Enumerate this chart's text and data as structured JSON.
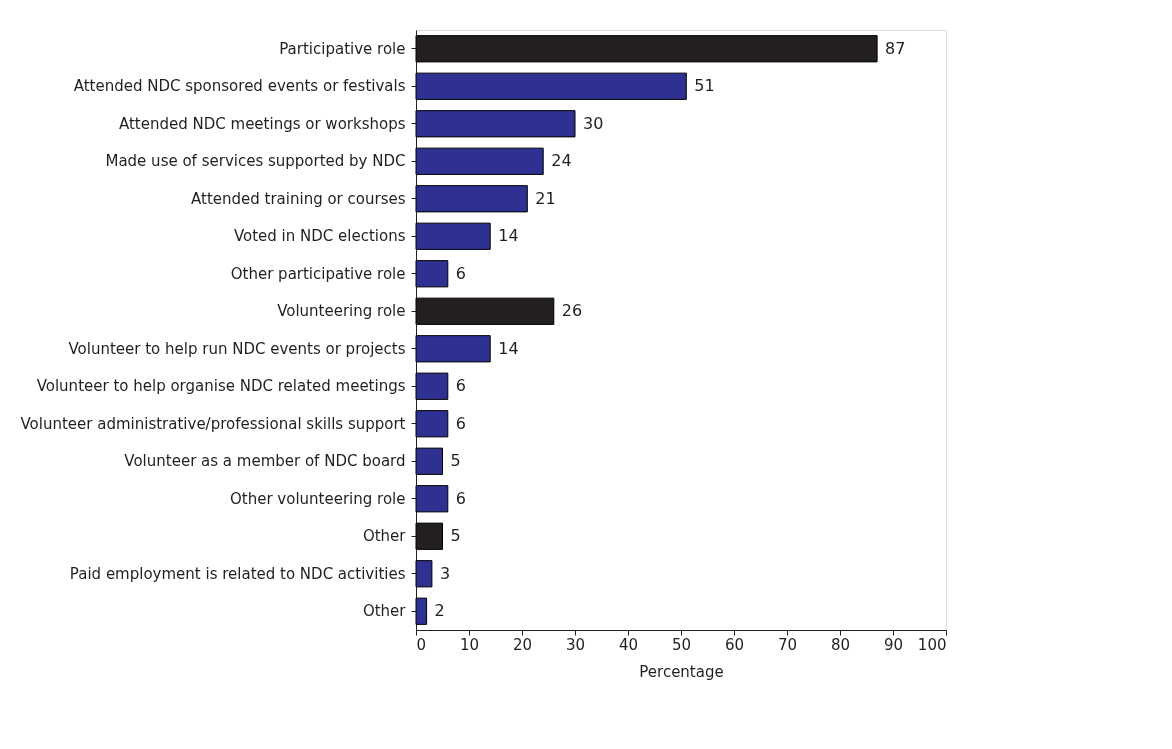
{
  "chart_data": {
    "type": "bar",
    "orientation": "horizontal",
    "xlabel": "Percentage",
    "categories": [
      "Participative role",
      "Attended NDC sponsored events or festivals",
      "Attended NDC meetings or workshops",
      "Made use of services supported by NDC",
      "Attended training or courses",
      "Voted in NDC elections",
      "Other participative role",
      "Volunteering role",
      "Volunteer to help run NDC events or projects",
      "Volunteer to help organise NDC related meetings",
      "Volunteer administrative/professional skills support",
      "Volunteer as a member of NDC board",
      "Other volunteering role",
      "Other",
      "Paid employment is related to NDC activities",
      "Other"
    ],
    "values": [
      87,
      51,
      30,
      24,
      21,
      14,
      6,
      26,
      14,
      6,
      6,
      5,
      6,
      5,
      3,
      2
    ],
    "colors": [
      "#231f20",
      "#2e3192",
      "#2e3192",
      "#2e3192",
      "#2e3192",
      "#2e3192",
      "#2e3192",
      "#231f20",
      "#2e3192",
      "#2e3192",
      "#2e3192",
      "#2e3192",
      "#2e3192",
      "#231f20",
      "#2e3192",
      "#2e3192"
    ],
    "xlim": [
      0,
      100
    ],
    "xticks": [
      0,
      10,
      20,
      30,
      40,
      50,
      60,
      70,
      80,
      90,
      100
    ],
    "data_labels": true,
    "grid": false
  }
}
